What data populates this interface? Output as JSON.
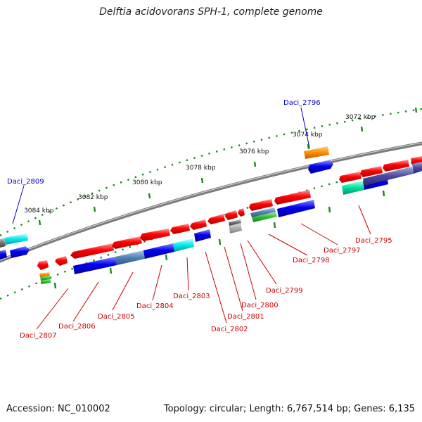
{
  "title": "Delftia acidovorans SPH-1, complete genome",
  "accession": "Accession: NC_010002",
  "stats": "Topology: circular; Length: 6,767,514 bp; Genes: 6,135",
  "colors": {
    "forward": "#ff0000",
    "reverse": "#0000ee",
    "highlight_label": "#0000cc",
    "gene_label": "#cc0000",
    "tick": "#1a8a1a",
    "backbone": "#808080"
  },
  "scale_ticks": [
    "3072 kbp",
    "3074 kbp",
    "3076 kbp",
    "3078 kbp",
    "3080 kbp",
    "3082 kbp",
    "3084 kbp"
  ],
  "highlighted_genes": [
    "Daci_2796",
    "Daci_2809"
  ],
  "gene_labels": [
    "Daci_2795",
    "Daci_2797",
    "Daci_2798",
    "Daci_2799",
    "Daci_2800",
    "Daci_2801",
    "Daci_2802",
    "Daci_2803",
    "Daci_2804",
    "Daci_2805",
    "Daci_2806",
    "Daci_2807"
  ]
}
